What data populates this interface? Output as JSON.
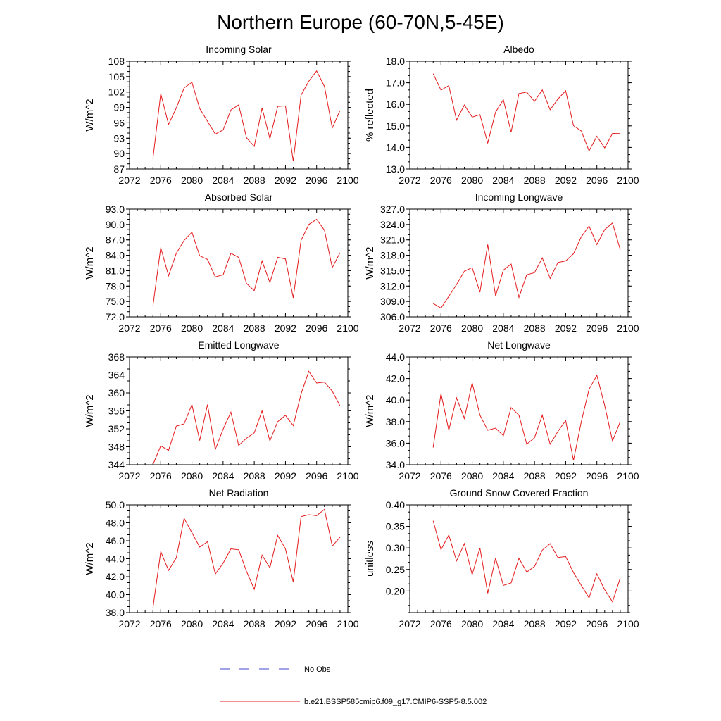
{
  "figure_title": "Northern Europe (60-70N,5-45E)",
  "legend": {
    "obs_label": "No Obs",
    "obs_color": "#4444cc",
    "model_label": "b.e21.BSSP585cmip6.f09_g17.CMIP6-SSP5-8.5.002",
    "model_color": "#e41a1c"
  },
  "chart_data": [
    {
      "type": "line",
      "title": "Incoming Solar",
      "ylabel": "W/m^2",
      "xlim": [
        2072,
        2100
      ],
      "x_ticks": [
        2072,
        2076,
        2080,
        2084,
        2088,
        2092,
        2096,
        2100
      ],
      "ylim": [
        87,
        108
      ],
      "y_ticks": [
        "87",
        "90",
        "93",
        "96",
        "99",
        "102",
        "105",
        "108"
      ],
      "x": [
        2075,
        2076,
        2077,
        2078,
        2079,
        2080,
        2081,
        2082,
        2083,
        2084,
        2085,
        2086,
        2087,
        2088,
        2089,
        2090,
        2091,
        2092,
        2093,
        2094,
        2095,
        2096,
        2097,
        2098,
        2099
      ],
      "values": [
        89.0,
        101.7,
        95.7,
        98.9,
        102.8,
        103.9,
        98.8,
        96.3,
        93.8,
        94.6,
        98.5,
        99.5,
        93.1,
        91.4,
        98.9,
        92.9,
        99.2,
        99.3,
        88.5,
        101.4,
        104.1,
        106.1,
        103.1,
        95.0,
        98.4
      ]
    },
    {
      "type": "line",
      "title": "Albedo",
      "ylabel": "% reflected",
      "xlim": [
        2072,
        2100
      ],
      "x_ticks": [
        2072,
        2076,
        2080,
        2084,
        2088,
        2092,
        2096,
        2100
      ],
      "ylim": [
        13.0,
        18.0
      ],
      "y_ticks": [
        "13.0",
        "14.0",
        "15.0",
        "16.0",
        "17.0",
        "18.0"
      ],
      "x": [
        2075,
        2076,
        2077,
        2078,
        2079,
        2080,
        2081,
        2082,
        2083,
        2084,
        2085,
        2086,
        2087,
        2088,
        2089,
        2090,
        2091,
        2092,
        2093,
        2094,
        2095,
        2096,
        2097,
        2098,
        2099
      ],
      "values": [
        17.42,
        16.66,
        16.87,
        15.27,
        15.97,
        15.41,
        15.52,
        14.21,
        15.64,
        16.22,
        14.71,
        16.5,
        16.57,
        16.14,
        16.67,
        15.75,
        16.25,
        16.63,
        15.01,
        14.76,
        13.84,
        14.52,
        13.98,
        14.65,
        14.64
      ]
    },
    {
      "type": "line",
      "title": "Absorbed Solar",
      "ylabel": "W/m^2",
      "xlim": [
        2072,
        2100
      ],
      "x_ticks": [
        2072,
        2076,
        2080,
        2084,
        2088,
        2092,
        2096,
        2100
      ],
      "ylim": [
        72.0,
        93.0
      ],
      "y_ticks": [
        "72.0",
        "75.0",
        "78.0",
        "81.0",
        "84.0",
        "87.0",
        "90.0",
        "93.0"
      ],
      "x": [
        2075,
        2076,
        2077,
        2078,
        2079,
        2080,
        2081,
        2082,
        2083,
        2084,
        2085,
        2086,
        2087,
        2088,
        2089,
        2090,
        2091,
        2092,
        2093,
        2094,
        2095,
        2096,
        2097,
        2098,
        2099
      ],
      "values": [
        74.1,
        85.5,
        80.0,
        84.4,
        86.9,
        88.5,
        83.9,
        83.2,
        79.8,
        80.2,
        84.4,
        83.6,
        78.5,
        77.1,
        82.9,
        78.7,
        83.6,
        83.3,
        75.7,
        86.9,
        90.0,
        91.0,
        88.9,
        81.6,
        84.5
      ]
    },
    {
      "type": "line",
      "title": "Incoming Longwave",
      "ylabel": "W/m^2",
      "xlim": [
        2072,
        2100
      ],
      "x_ticks": [
        2072,
        2076,
        2080,
        2084,
        2088,
        2092,
        2096,
        2100
      ],
      "ylim": [
        306.0,
        327.0
      ],
      "y_ticks": [
        "306.0",
        "309.0",
        "312.0",
        "315.0",
        "318.0",
        "321.0",
        "324.0",
        "327.0"
      ],
      "x": [
        2075,
        2076,
        2077,
        2078,
        2079,
        2080,
        2081,
        2082,
        2083,
        2084,
        2085,
        2086,
        2087,
        2088,
        2089,
        2090,
        2091,
        2092,
        2093,
        2094,
        2095,
        2096,
        2097,
        2098,
        2099
      ],
      "values": [
        308.6,
        307.7,
        310.0,
        312.3,
        314.9,
        315.6,
        310.8,
        320.1,
        310.1,
        315.1,
        316.3,
        309.8,
        314.2,
        314.6,
        317.5,
        313.5,
        316.6,
        316.9,
        318.3,
        321.6,
        323.7,
        320.1,
        323.0,
        324.3,
        319.1
      ]
    },
    {
      "type": "line",
      "title": "Emitted Longwave",
      "ylabel": "W/m^2",
      "xlim": [
        2072,
        2100
      ],
      "x_ticks": [
        2072,
        2076,
        2080,
        2084,
        2088,
        2092,
        2096,
        2100
      ],
      "ylim": [
        344,
        368
      ],
      "y_ticks": [
        "344",
        "348",
        "352",
        "356",
        "360",
        "364",
        "368"
      ],
      "x": [
        2075,
        2076,
        2077,
        2078,
        2079,
        2080,
        2081,
        2082,
        2083,
        2084,
        2085,
        2086,
        2087,
        2088,
        2089,
        2090,
        2091,
        2092,
        2093,
        2094,
        2095,
        2096,
        2097,
        2098,
        2099
      ],
      "values": [
        344.0,
        348.2,
        347.2,
        352.6,
        353.1,
        357.4,
        349.4,
        357.4,
        347.4,
        351.9,
        355.7,
        348.3,
        349.9,
        351.1,
        356.0,
        349.3,
        353.6,
        355.0,
        352.7,
        359.8,
        364.8,
        362.2,
        362.4,
        360.4,
        357.1
      ]
    },
    {
      "type": "line",
      "title": "Net Longwave",
      "ylabel": "W/m^2",
      "xlim": [
        2072,
        2100
      ],
      "x_ticks": [
        2072,
        2076,
        2080,
        2084,
        2088,
        2092,
        2096,
        2100
      ],
      "ylim": [
        34.0,
        44.0
      ],
      "y_ticks": [
        "34.0",
        "36.0",
        "38.0",
        "40.0",
        "42.0",
        "44.0"
      ],
      "x": [
        2075,
        2076,
        2077,
        2078,
        2079,
        2080,
        2081,
        2082,
        2083,
        2084,
        2085,
        2086,
        2087,
        2088,
        2089,
        2090,
        2091,
        2092,
        2093,
        2094,
        2095,
        2096,
        2097,
        2098,
        2099
      ],
      "values": [
        35.6,
        40.6,
        37.2,
        40.2,
        38.3,
        41.6,
        38.6,
        37.2,
        37.4,
        36.7,
        39.3,
        38.6,
        35.9,
        36.5,
        38.6,
        35.9,
        37.1,
        38.1,
        34.4,
        38.0,
        41.0,
        42.3,
        39.5,
        36.2,
        38.0
      ]
    },
    {
      "type": "line",
      "title": "Net Radiation",
      "ylabel": "W/m^2",
      "xlim": [
        2072,
        2100
      ],
      "x_ticks": [
        2072,
        2076,
        2080,
        2084,
        2088,
        2092,
        2096,
        2100
      ],
      "ylim": [
        38.0,
        50.0
      ],
      "y_ticks": [
        "38.0",
        "40.0",
        "42.0",
        "44.0",
        "46.0",
        "48.0",
        "50.0"
      ],
      "x": [
        2075,
        2076,
        2077,
        2078,
        2079,
        2080,
        2081,
        2082,
        2083,
        2084,
        2085,
        2086,
        2087,
        2088,
        2089,
        2090,
        2091,
        2092,
        2093,
        2094,
        2095,
        2096,
        2097,
        2098,
        2099
      ],
      "values": [
        38.5,
        44.8,
        42.7,
        44.1,
        48.5,
        46.9,
        45.3,
        45.9,
        42.3,
        43.5,
        45.1,
        45.0,
        42.6,
        40.6,
        44.4,
        43.0,
        46.6,
        45.1,
        41.4,
        48.7,
        48.9,
        48.8,
        49.5,
        45.4,
        46.4
      ]
    },
    {
      "type": "line",
      "title": "Ground Snow Covered Fraction",
      "ylabel": "unitless",
      "xlim": [
        2072,
        2100
      ],
      "x_ticks": [
        2072,
        2076,
        2080,
        2084,
        2088,
        2092,
        2096,
        2100
      ],
      "ylim": [
        0.15,
        0.4
      ],
      "y_ticks": [
        "0.20",
        "0.25",
        "0.30",
        "0.35",
        "0.40"
      ],
      "x": [
        2075,
        2076,
        2077,
        2078,
        2079,
        2080,
        2081,
        2082,
        2083,
        2084,
        2085,
        2086,
        2087,
        2088,
        2089,
        2090,
        2091,
        2092,
        2093,
        2094,
        2095,
        2096,
        2097,
        2098,
        2099
      ],
      "values": [
        0.363,
        0.296,
        0.33,
        0.27,
        0.31,
        0.238,
        0.3,
        0.195,
        0.276,
        0.213,
        0.219,
        0.276,
        0.244,
        0.257,
        0.295,
        0.31,
        0.278,
        0.28,
        0.243,
        0.213,
        0.184,
        0.24,
        0.203,
        0.175,
        0.23
      ]
    }
  ]
}
